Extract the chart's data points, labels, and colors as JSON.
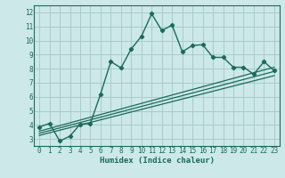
{
  "xlabel": "Humidex (Indice chaleur)",
  "bg_color": "#cce8e8",
  "grid_color": "#aacccc",
  "line_color": "#1a6b5a",
  "xlim": [
    -0.5,
    23.5
  ],
  "ylim": [
    2.5,
    12.5
  ],
  "xticks": [
    0,
    1,
    2,
    3,
    4,
    5,
    6,
    7,
    8,
    9,
    10,
    11,
    12,
    13,
    14,
    15,
    16,
    17,
    18,
    19,
    20,
    21,
    22,
    23
  ],
  "yticks": [
    3,
    4,
    5,
    6,
    7,
    8,
    9,
    10,
    11,
    12
  ],
  "main_x": [
    0,
    1,
    2,
    3,
    4,
    5,
    6,
    7,
    8,
    9,
    10,
    11,
    12,
    13,
    14,
    15,
    16,
    17,
    18,
    19,
    20,
    21,
    22,
    23
  ],
  "main_y": [
    3.85,
    4.1,
    2.85,
    3.2,
    4.05,
    4.1,
    6.2,
    8.5,
    8.05,
    9.4,
    10.3,
    11.9,
    10.7,
    11.1,
    9.2,
    9.65,
    9.7,
    8.8,
    8.8,
    8.1,
    8.1,
    7.6,
    8.5,
    7.85
  ],
  "line1_x": [
    0,
    23
  ],
  "line1_y": [
    3.55,
    8.1
  ],
  "line2_x": [
    0,
    23
  ],
  "line2_y": [
    3.4,
    7.8
  ],
  "line3_x": [
    0,
    23
  ],
  "line3_y": [
    3.25,
    7.5
  ]
}
